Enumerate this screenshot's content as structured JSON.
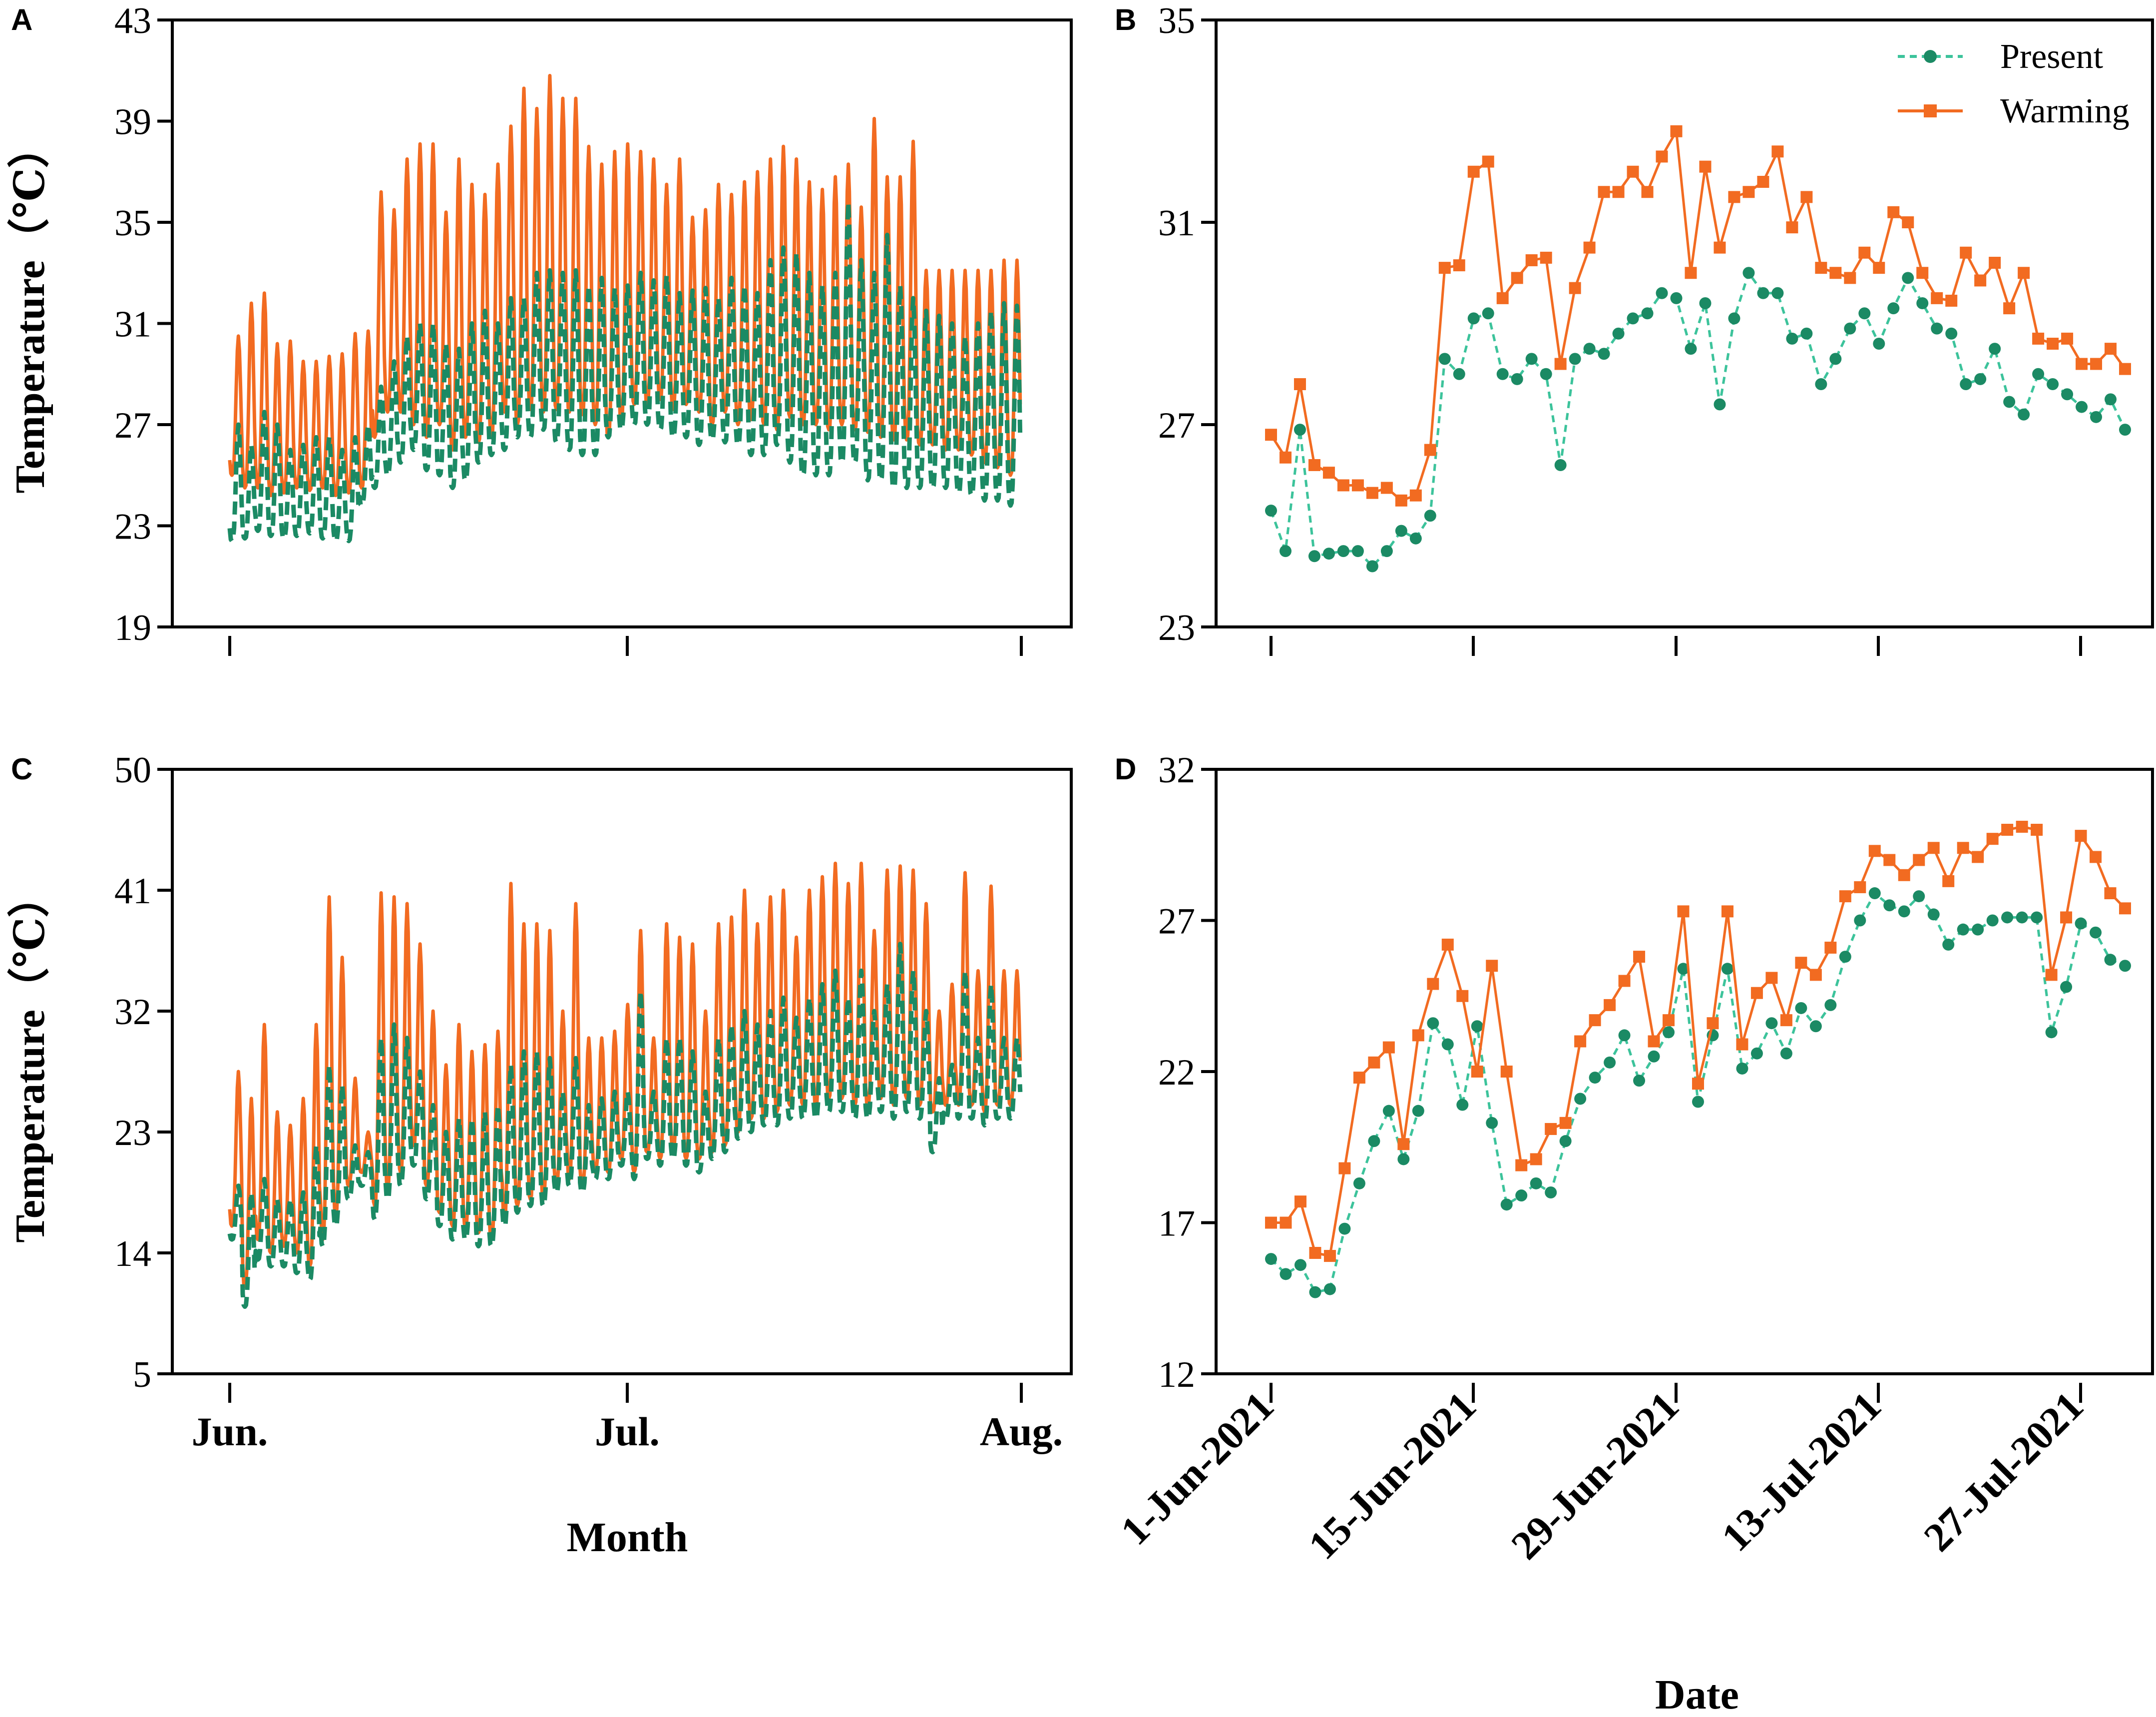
{
  "colors": {
    "present": "#1b8a64",
    "warming": "#f26b21",
    "present_line": "#3cc39b",
    "warming_line": "#f26b21",
    "axis": "#000000"
  },
  "labels": {
    "panel_a": "A",
    "panel_b": "B",
    "panel_c": "C",
    "panel_d": "D",
    "ylabel_a": "Temperature（℃）",
    "ylabel_c": "Temperature（℃）",
    "xlabel_left": "Month",
    "xlabel_right": "Date",
    "month_ticks": [
      "Jun.",
      "Jul.",
      "Aug."
    ],
    "date_ticks": [
      "1-Jun-2021",
      "15-Jun-2021",
      "29-Jun-2021",
      "13-Jul-2021",
      "27-Jul-2021"
    ],
    "legend_present": "Present",
    "legend_warming": "Warming"
  },
  "chart_data": [
    {
      "panel": "A",
      "type": "line",
      "xlabel": "",
      "ylabel": "Temperature（℃）",
      "ylim": [
        19,
        43
      ],
      "yticks": [
        19,
        23,
        27,
        31,
        35,
        39,
        43
      ],
      "x_range_days": [
        0,
        61
      ],
      "x_ticks": [
        "Jun.",
        "Jul.",
        "Aug."
      ],
      "series": [
        {
          "name": "Warming",
          "style": "solid",
          "resolution": "hourly (daily max/min shown)",
          "daily_max": [
            30.5,
            31.8,
            32.2,
            30.2,
            30.3,
            29.5,
            29.5,
            29.7,
            29.8,
            30.6,
            30.7,
            36.2,
            35.5,
            37.5,
            38.1,
            38.1,
            35.4,
            37.5,
            36.5,
            36.1,
            37.3,
            38.8,
            40.3,
            39.5,
            40.8,
            39.9,
            39.9,
            38.0,
            37.3,
            37.8,
            38.1,
            37.8,
            37.5,
            36.5,
            37.5,
            35.2,
            35.5,
            36.5,
            36.1,
            36.6,
            37.0,
            37.5,
            38.0,
            37.5,
            36.6,
            36.3,
            36.8,
            37.3,
            35.6,
            39.1,
            36.8,
            36.8,
            38.2,
            33.1,
            33.1,
            33.1,
            33.1,
            33.1,
            33.1,
            33.5,
            33.5
          ],
          "daily_min": [
            25.0,
            24.5,
            24.5,
            24.2,
            24.3,
            24.5,
            24.4,
            24.5,
            24.2,
            24.3,
            24.5,
            26.5,
            27.5,
            27.5,
            27.0,
            26.5,
            27.0,
            26.0,
            26.5,
            26.3,
            26.5,
            27.5,
            27.0,
            27.6,
            27.5,
            27.6,
            27.5,
            27.4,
            27.0,
            26.5,
            27.2,
            27.8,
            27.8,
            28.0,
            27.6,
            27.8,
            27.5,
            27.0,
            27.5,
            27.0,
            27.2,
            27.0,
            26.8,
            27.3,
            27.0,
            27.0,
            26.8,
            27.0,
            26.8,
            26.7,
            26.5,
            26.4,
            26.4,
            26.2,
            26.2,
            26.0,
            26.0,
            25.8,
            25.5,
            25.3,
            25.0
          ]
        },
        {
          "name": "Present",
          "style": "dashed",
          "resolution": "hourly (daily max/min shown)",
          "daily_max": [
            27.0,
            26.2,
            27.5,
            27.0,
            26.0,
            26.2,
            26.5,
            26.5,
            26.0,
            26.5,
            27.0,
            28.5,
            29.5,
            30.5,
            31.0,
            31.0,
            30.2,
            30.0,
            31.0,
            31.5,
            31.0,
            32.0,
            32.0,
            33.0,
            33.1,
            33.0,
            33.1,
            32.5,
            32.8,
            32.4,
            32.5,
            33.0,
            32.7,
            32.9,
            32.2,
            32.3,
            32.4,
            32.0,
            32.8,
            32.5,
            32.2,
            33.5,
            34.0,
            33.8,
            33.0,
            32.5,
            33.0,
            35.8,
            33.5,
            33.0,
            34.5,
            32.5,
            32.0,
            31.5,
            31.3,
            31.0,
            30.5,
            31.0,
            31.5,
            31.8,
            31.7
          ],
          "daily_min": [
            22.4,
            22.5,
            22.8,
            22.6,
            22.5,
            22.6,
            22.7,
            22.5,
            22.4,
            22.4,
            23.8,
            24.5,
            25.0,
            25.5,
            26.0,
            25.2,
            25.0,
            24.5,
            24.8,
            25.5,
            25.8,
            26.0,
            26.5,
            26.5,
            26.8,
            26.3,
            26.0,
            25.8,
            25.8,
            26.5,
            26.8,
            27.0,
            27.0,
            26.8,
            26.5,
            26.5,
            26.2,
            26.4,
            26.3,
            26.2,
            25.8,
            25.8,
            26.2,
            25.5,
            25.0,
            25.0,
            25.0,
            25.5,
            25.5,
            24.8,
            24.8,
            24.5,
            24.5,
            24.5,
            24.5,
            24.5,
            24.3,
            24.2,
            24.0,
            24.0,
            23.8
          ]
        }
      ]
    },
    {
      "panel": "B",
      "type": "line",
      "xlabel": "",
      "ylabel": "",
      "ylim": [
        23,
        35
      ],
      "yticks": [
        23,
        27,
        31,
        35
      ],
      "x_ticks": [
        "1-Jun-2021",
        "15-Jun-2021",
        "29-Jun-2021",
        "13-Jul-2021",
        "27-Jul-2021"
      ],
      "legend": [
        "Present",
        "Warming"
      ],
      "legend_position": "top-right",
      "series": [
        {
          "name": "Present",
          "style": "dashed, circle markers",
          "values": [
            25.3,
            24.5,
            26.9,
            24.4,
            24.45,
            24.5,
            24.5,
            24.2,
            24.5,
            24.9,
            24.75,
            25.2,
            28.3,
            28.0,
            29.1,
            29.2,
            28.0,
            27.9,
            28.3,
            28.0,
            26.2,
            28.3,
            28.5,
            28.4,
            28.8,
            29.1,
            29.2,
            29.6,
            29.5,
            28.5,
            29.4,
            27.4,
            29.1,
            30.0,
            29.6,
            29.6,
            28.7,
            28.8,
            27.8,
            28.3,
            28.9,
            29.2,
            28.6,
            29.3,
            29.9,
            29.4,
            28.9,
            28.8,
            27.8,
            27.9,
            28.5,
            27.45,
            27.2,
            28.0,
            27.8,
            27.6,
            27.35,
            27.15,
            27.5,
            26.9
          ]
        },
        {
          "name": "Warming",
          "style": "solid, square markers",
          "values": [
            26.8,
            26.35,
            27.8,
            26.2,
            26.05,
            25.8,
            25.8,
            25.65,
            25.75,
            25.5,
            25.6,
            26.5,
            30.1,
            30.15,
            32.0,
            32.2,
            29.5,
            29.9,
            30.25,
            30.3,
            28.2,
            29.7,
            30.5,
            31.6,
            31.6,
            32.0,
            31.6,
            32.3,
            32.8,
            30.0,
            32.1,
            30.5,
            31.5,
            31.6,
            31.8,
            32.4,
            30.9,
            31.5,
            30.1,
            30.0,
            29.9,
            30.4,
            30.1,
            31.2,
            31.0,
            30.0,
            29.5,
            29.45,
            30.4,
            29.85,
            30.2,
            29.3,
            30.0,
            28.7,
            28.6,
            28.7,
            28.2,
            28.2,
            28.5,
            28.1
          ]
        }
      ]
    },
    {
      "panel": "C",
      "type": "line",
      "xlabel": "Month",
      "ylabel": "Temperature（℃）",
      "ylim": [
        5,
        50
      ],
      "yticks": [
        5,
        14,
        23,
        32,
        41,
        50
      ],
      "x_range_days": [
        0,
        61
      ],
      "x_ticks": [
        "Jun.",
        "Jul.",
        "Aug."
      ],
      "series": [
        {
          "name": "Warming",
          "style": "solid",
          "resolution": "hourly (daily max/min shown)",
          "daily_max": [
            27.5,
            25.5,
            31.0,
            24.5,
            23.5,
            25.5,
            31.0,
            40.5,
            36.0,
            27.0,
            23.0,
            40.8,
            40.5,
            40.0,
            37.0,
            32.0,
            28.0,
            31.0,
            29.0,
            29.5,
            30.5,
            41.5,
            38.5,
            38.5,
            38.0,
            32.0,
            40.0,
            30.0,
            30.0,
            30.5,
            32.5,
            38.0,
            30.0,
            38.5,
            37.5,
            37.0,
            32.0,
            38.5,
            39.0,
            41.0,
            38.5,
            40.5,
            41.0,
            37.5,
            41.0,
            42.0,
            43.0,
            41.5,
            43.0,
            38.0,
            42.5,
            42.8,
            42.5,
            40.0,
            32.0,
            34.0,
            42.3,
            35.0,
            41.3,
            35.0,
            35.0
          ],
          "daily_min": [
            16.0,
            11.5,
            15.0,
            14.0,
            14.5,
            14.0,
            13.0,
            15.0,
            17.0,
            19.0,
            20.0,
            17.5,
            19.0,
            20.0,
            22.0,
            19.0,
            17.0,
            16.0,
            16.0,
            15.5,
            15.0,
            16.5,
            17.5,
            18.0,
            18.0,
            19.0,
            19.5,
            19.0,
            20.0,
            20.0,
            21.0,
            20.0,
            21.5,
            21.0,
            21.5,
            21.0,
            21.0,
            21.5,
            22.0,
            23.0,
            24.0,
            24.0,
            24.5,
            25.0,
            25.0,
            25.0,
            25.5,
            25.5,
            25.0,
            25.0,
            25.5,
            25.0,
            25.5,
            25.0,
            24.5,
            25.0,
            25.0,
            25.0,
            24.5,
            25.0,
            25.0
          ]
        },
        {
          "name": "Present",
          "style": "dashed",
          "resolution": "hourly (daily max/min shown)",
          "daily_max": [
            19.0,
            18.5,
            19.5,
            18.0,
            18.0,
            18.5,
            22.0,
            28.0,
            26.5,
            22.0,
            21.5,
            30.0,
            31.0,
            30.0,
            27.5,
            25.0,
            23.0,
            24.0,
            24.0,
            24.5,
            25.0,
            28.0,
            29.0,
            29.0,
            28.5,
            26.0,
            28.5,
            25.0,
            25.5,
            26.0,
            26.0,
            33.5,
            26.0,
            30.0,
            30.0,
            29.0,
            26.0,
            30.0,
            31.0,
            32.0,
            31.0,
            32.0,
            33.0,
            31.5,
            33.0,
            34.0,
            35.0,
            33.0,
            35.0,
            32.0,
            34.0,
            37.0,
            35.0,
            32.0,
            27.0,
            28.0,
            35.0,
            30.0,
            34.0,
            30.0,
            30.0
          ],
          "daily_min": [
            15.0,
            10.0,
            13.5,
            13.0,
            13.0,
            12.5,
            12.0,
            14.5,
            16.0,
            18.0,
            19.0,
            16.5,
            18.0,
            19.0,
            20.5,
            18.0,
            16.0,
            15.0,
            15.0,
            14.5,
            14.5,
            16.0,
            17.0,
            17.5,
            17.5,
            18.5,
            19.0,
            18.5,
            19.5,
            19.5,
            20.5,
            19.5,
            21.0,
            20.5,
            21.0,
            20.5,
            20.0,
            21.0,
            21.5,
            22.5,
            23.0,
            23.5,
            23.5,
            24.0,
            24.0,
            24.0,
            24.5,
            24.5,
            24.0,
            24.0,
            24.5,
            24.0,
            24.5,
            24.0,
            21.5,
            24.0,
            24.0,
            24.0,
            23.5,
            24.0,
            24.0
          ]
        }
      ]
    },
    {
      "panel": "D",
      "type": "line",
      "xlabel": "Date",
      "ylabel": "",
      "ylim": [
        12,
        32
      ],
      "yticks": [
        12,
        17,
        22,
        27,
        32
      ],
      "x_ticks": [
        "1-Jun-2021",
        "15-Jun-2021",
        "29-Jun-2021",
        "13-Jul-2021",
        "27-Jul-2021"
      ],
      "series": [
        {
          "name": "Present",
          "style": "dashed, circle markers",
          "values": [
            15.8,
            15.3,
            15.6,
            14.7,
            14.8,
            16.8,
            18.3,
            19.7,
            20.7,
            19.1,
            20.7,
            23.6,
            22.9,
            20.9,
            23.5,
            20.3,
            17.6,
            17.9,
            18.3,
            18.0,
            19.7,
            21.1,
            21.8,
            22.3,
            23.2,
            21.7,
            22.5,
            23.3,
            25.4,
            21.0,
            23.2,
            25.4,
            22.1,
            22.6,
            23.6,
            22.6,
            24.1,
            23.5,
            24.2,
            25.8,
            27.0,
            27.9,
            27.5,
            27.3,
            27.8,
            27.2,
            26.2,
            26.7,
            26.7,
            27.0,
            27.1,
            27.1,
            27.1,
            23.3,
            24.8,
            26.9,
            26.6,
            25.7,
            25.5
          ]
        },
        {
          "name": "Warming",
          "style": "solid, square markers",
          "values": [
            17.0,
            17.0,
            17.7,
            16.0,
            15.9,
            18.8,
            21.8,
            22.3,
            22.8,
            19.6,
            23.2,
            24.9,
            26.2,
            24.5,
            22.0,
            25.5,
            22.0,
            18.9,
            19.1,
            20.1,
            20.3,
            23.0,
            23.7,
            24.2,
            25.0,
            25.8,
            23.0,
            23.7,
            27.3,
            21.6,
            23.6,
            27.3,
            22.9,
            24.6,
            25.1,
            23.7,
            25.6,
            25.2,
            26.1,
            27.8,
            28.1,
            29.3,
            29.0,
            28.5,
            29.0,
            29.4,
            28.3,
            29.4,
            29.1,
            29.7,
            30.0,
            30.1,
            30.0,
            25.2,
            27.1,
            29.8,
            29.1,
            27.9,
            27.4
          ]
        }
      ]
    }
  ]
}
